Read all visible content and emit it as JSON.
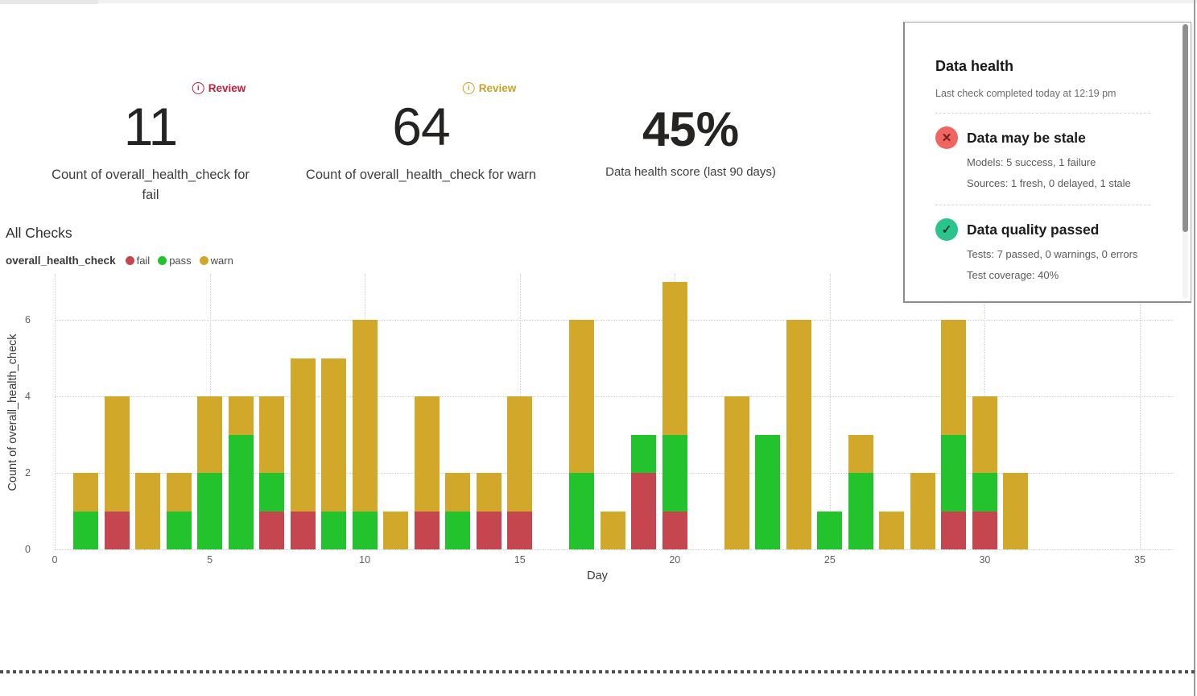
{
  "kpis": [
    {
      "badge": {
        "label": "Review",
        "color": "#C21E39"
      },
      "value": "11",
      "label": "Count of overall_health_check for fail"
    },
    {
      "badge": {
        "label": "Review",
        "color": "#C9A227"
      },
      "value": "64",
      "label": "Count of overall_health_check for warn"
    },
    {
      "value": "45%",
      "label": "Data health score (last 90 days)"
    }
  ],
  "section_title": "All Checks",
  "legend": {
    "title": "overall_health_check",
    "items": [
      {
        "label": "fail",
        "color": "#C5464E"
      },
      {
        "label": "pass",
        "color": "#23C32E"
      },
      {
        "label": "warn",
        "color": "#D2A82A"
      }
    ]
  },
  "chart_data": {
    "type": "bar",
    "stacked": true,
    "title": "All Checks",
    "xlabel": "Day",
    "ylabel": "Count of overall_health_check",
    "x_ticks": [
      0,
      5,
      10,
      15,
      20,
      25,
      30,
      35
    ],
    "y_ticks": [
      0,
      2,
      4,
      6
    ],
    "xlim": [
      0,
      36.5
    ],
    "ylim": [
      0,
      7.2
    ],
    "grid": "dotted",
    "legend_position": "top-left",
    "days": [
      1,
      2,
      3,
      4,
      5,
      6,
      7,
      8,
      9,
      10,
      11,
      12,
      13,
      14,
      15,
      16,
      17,
      18,
      19,
      20,
      21,
      22,
      23,
      24,
      25,
      26,
      27,
      28,
      29,
      30,
      31
    ],
    "series": [
      {
        "name": "fail",
        "color": "#C5464E",
        "values": [
          0,
          1,
          0,
          0,
          0,
          0,
          1,
          1,
          0,
          0,
          0,
          1,
          0,
          1,
          1,
          0,
          0,
          0,
          2,
          1,
          0,
          0,
          0,
          0,
          0,
          0,
          0,
          0,
          1,
          1,
          0
        ]
      },
      {
        "name": "pass",
        "color": "#23C32E",
        "values": [
          1,
          0,
          0,
          1,
          2,
          3,
          1,
          0,
          1,
          1,
          0,
          0,
          1,
          0,
          0,
          0,
          2,
          0,
          1,
          2,
          0,
          0,
          3,
          0,
          1,
          2,
          0,
          0,
          2,
          1,
          0
        ]
      },
      {
        "name": "warn",
        "color": "#D2A82A",
        "values": [
          1,
          3,
          2,
          1,
          2,
          1,
          2,
          4,
          4,
          5,
          1,
          3,
          1,
          1,
          3,
          0,
          4,
          1,
          0,
          4,
          0,
          4,
          0,
          6,
          0,
          1,
          1,
          2,
          3,
          2,
          2
        ]
      }
    ]
  },
  "health_panel": {
    "title": "Data health",
    "subtitle": "Last check completed today at 12:19 pm",
    "sections": [
      {
        "title": "Data may be stale",
        "icon_glyph": "✕",
        "icon_bg": "#F0655F",
        "icon_color": "#6B1F1F",
        "lines": [
          "Models: 5 success, 1 failure",
          "Sources: 1 fresh, 0 delayed, 1 stale"
        ]
      },
      {
        "title": "Data quality passed",
        "icon_glyph": "✓",
        "icon_bg": "#2BC48A",
        "icon_color": "#103A26",
        "lines": [
          "Tests: 7 passed, 0 warnings, 0 errors",
          "Test coverage: 40%"
        ]
      }
    ]
  }
}
